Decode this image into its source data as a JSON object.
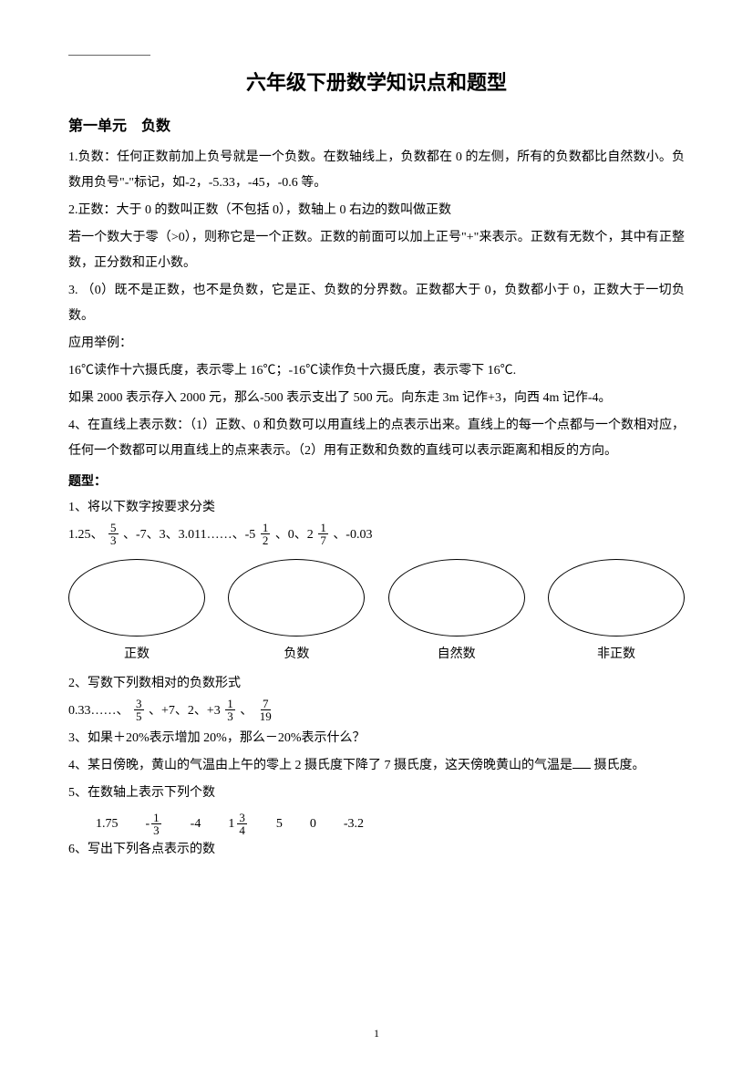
{
  "title": "六年级下册数学知识点和题型",
  "section1": {
    "heading": "第一单元　负数",
    "p1": "1.负数：任何正数前加上负号就是一个负数。在数轴线上，负数都在 0 的左侧，所有的负数都比自然数小。负数用负号\"-\"标记，如-2，-5.33，-45，-0.6 等。",
    "p2": "2.正数：大于 0 的数叫正数（不包括 0），数轴上 0 右边的数叫做正数",
    "p3": "若一个数大于零（>0），则称它是一个正数。正数的前面可以加上正号\"+\"来表示。正数有无数个，其中有正整数，正分数和正小数。",
    "p4": "3. （0）既不是正数，也不是负数，它是正、负数的分界数。正数都大于 0，负数都小于 0，正数大于一切负数。",
    "p5": "应用举例：",
    "p6": "16℃读作十六摄氏度，表示零上 16℃；-16℃读作负十六摄氏度，表示零下 16℃.",
    "p7": "如果 2000 表示存入 2000 元，那么-500 表示支出了 500 元。向东走 3m 记作+3，向西 4m 记作-4。",
    "p8": "4、在直线上表示数：（1）正数、0 和负数可以用直线上的点表示出来。直线上的每一个点都与一个数相对应，任何一个数都可以用直线上的点来表示。（2）用有正数和负数的直线可以表示距离和相反的方向。"
  },
  "questions": {
    "heading": "题型：",
    "q1_label": "1、将以下数字按要求分类",
    "q1_prefix": "1.25、",
    "q1_mid1": "、-7、3、3.011……、-5",
    "q1_mid2": "、0、2",
    "q1_suffix": "、-0.03",
    "ellipse_labels": [
      "正数",
      "负数",
      "自然数",
      "非正数"
    ],
    "q2_label": "2、写数下列数相对的负数形式",
    "q2_prefix": "0.33……、 ",
    "q2_mid1": "、+7、2、+3",
    "q2_mid2": "、",
    "q3": "3、如果＋20%表示增加 20%，那么－20%表示什么？",
    "q4_pre": "4、某日傍晚，黄山的气温由上午的零上 2 摄氏度下降了 7 摄氏度，这天傍晚黄山的气温是",
    "q4_post": "摄氏度。",
    "q5": "5、在数轴上表示下列个数",
    "q5_items": [
      "1.75",
      " -4",
      "",
      "5",
      "0",
      "-3.2"
    ],
    "q6": "6、写出下列各点表示的数"
  },
  "fractions": {
    "f5_3": {
      "n": "5",
      "d": "3"
    },
    "f1_2": {
      "n": "1",
      "d": "2"
    },
    "f1_7": {
      "n": "1",
      "d": "7"
    },
    "f3_5": {
      "n": "3",
      "d": "5"
    },
    "f1_3": {
      "n": "1",
      "d": "3"
    },
    "f7_19": {
      "n": "7",
      "d": "19"
    },
    "f1_3b": {
      "n": "1",
      "d": "3"
    },
    "f3_4": {
      "n": "3",
      "d": "4"
    }
  },
  "page_number": "1"
}
